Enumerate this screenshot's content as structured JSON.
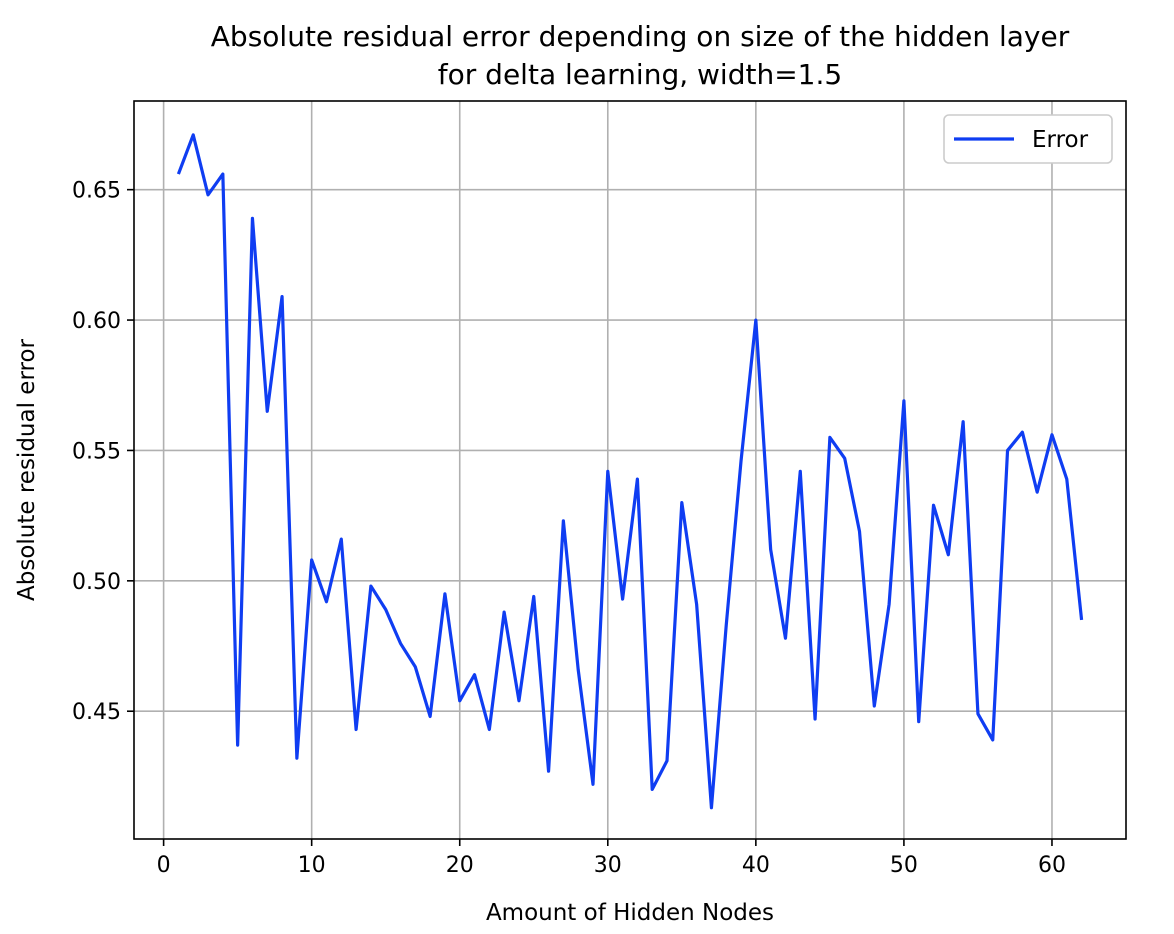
{
  "colors": {
    "series": "#0f3df2",
    "grid": "#b0b0b0",
    "axes": "#000000",
    "legend_border": "#cccccc"
  },
  "chart_data": {
    "type": "line",
    "title": "Absolute residual error depending on size of the hidden layer",
    "subtitle": "for delta learning, width=1.5",
    "xlabel": "Amount of Hidden Nodes",
    "ylabel": "Absolute residual error",
    "xlim": [
      -2,
      65
    ],
    "ylim": [
      0.401,
      0.684
    ],
    "xticks": [
      0,
      10,
      20,
      30,
      40,
      50,
      60
    ],
    "xtick_labels": [
      "0",
      "10",
      "20",
      "30",
      "40",
      "50",
      "60"
    ],
    "yticks": [
      0.45,
      0.5,
      0.55,
      0.6,
      0.65
    ],
    "ytick_labels": [
      "0.45",
      "0.50",
      "0.55",
      "0.60",
      "0.65"
    ],
    "grid": true,
    "legend": {
      "position": "top-right",
      "entries": [
        "Error"
      ]
    },
    "series": [
      {
        "name": "Error",
        "x": [
          1,
          2,
          3,
          4,
          5,
          6,
          7,
          8,
          9,
          10,
          11,
          12,
          13,
          14,
          15,
          16,
          17,
          18,
          19,
          20,
          21,
          22,
          23,
          24,
          25,
          26,
          27,
          28,
          29,
          30,
          31,
          32,
          33,
          34,
          35,
          36,
          37,
          38,
          39,
          40,
          41,
          42,
          43,
          44,
          45,
          46,
          47,
          48,
          49,
          50,
          51,
          52,
          53,
          54,
          55,
          56,
          57,
          58,
          59,
          60,
          61,
          62
        ],
        "values": [
          0.656,
          0.671,
          0.648,
          0.656,
          0.437,
          0.639,
          0.565,
          0.609,
          0.432,
          0.508,
          0.492,
          0.516,
          0.443,
          0.498,
          0.489,
          0.476,
          0.467,
          0.448,
          0.495,
          0.454,
          0.464,
          0.443,
          0.488,
          0.454,
          0.494,
          0.427,
          0.523,
          0.466,
          0.422,
          0.542,
          0.493,
          0.539,
          0.42,
          0.431,
          0.53,
          0.491,
          0.413,
          0.483,
          0.546,
          0.6,
          0.512,
          0.478,
          0.542,
          0.447,
          0.555,
          0.547,
          0.519,
          0.452,
          0.491,
          0.569,
          0.446,
          0.529,
          0.51,
          0.561,
          0.449,
          0.439,
          0.55,
          0.557,
          0.534,
          0.556,
          0.539,
          0.485
        ]
      }
    ]
  }
}
